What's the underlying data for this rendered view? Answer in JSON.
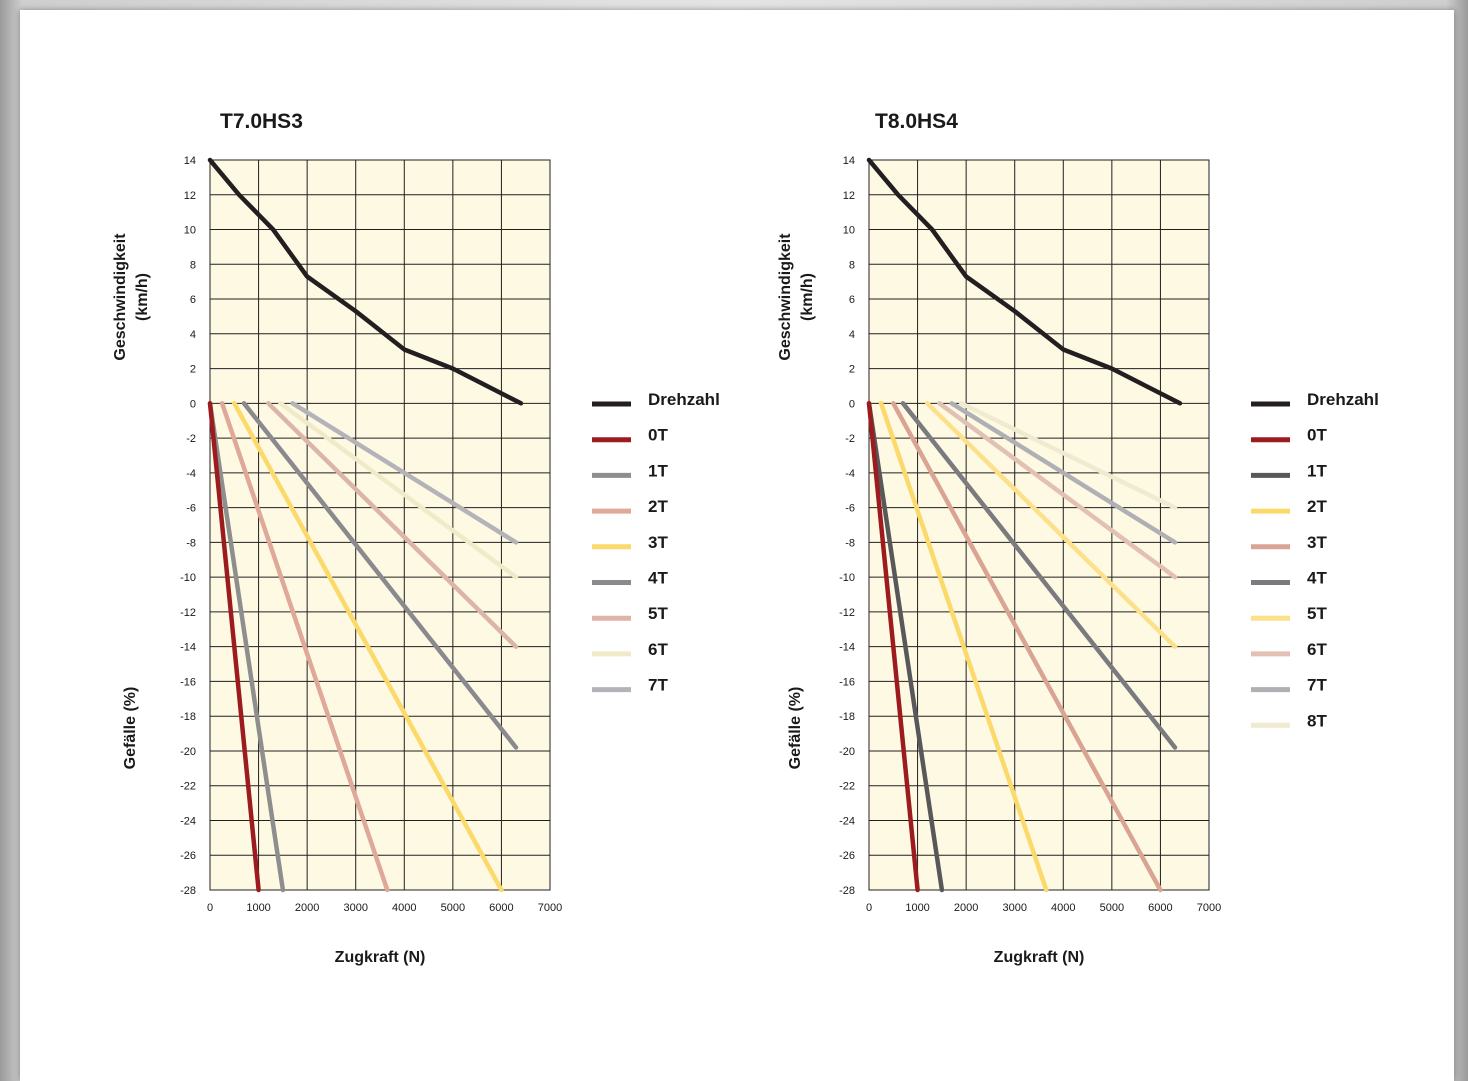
{
  "chart_data": [
    {
      "type": "line",
      "title": "T7.0HS3",
      "xlabel": "Zugkraft (N)",
      "ylabel_top": [
        "Geschwindigkeit",
        "(km/h)"
      ],
      "ylabel_bottom": "Gefälle (%)",
      "xlim": [
        0,
        7000
      ],
      "ylim": [
        -28,
        14
      ],
      "x_ticks": [
        0,
        1000,
        2000,
        3000,
        4000,
        5000,
        6000,
        7000
      ],
      "y_ticks": [
        14,
        12,
        10,
        8,
        6,
        4,
        2,
        0,
        -2,
        -4,
        -6,
        -8,
        -10,
        -12,
        -14,
        -16,
        -18,
        -20,
        -22,
        -24,
        -26,
        -28
      ],
      "grid": true,
      "legend_position": "right",
      "series": [
        {
          "name": "Drehzahl",
          "color": "#231f20",
          "points": [
            [
              0,
              14
            ],
            [
              600,
              12
            ],
            [
              1300,
              10
            ],
            [
              2000,
              7.3
            ],
            [
              3000,
              5.3
            ],
            [
              4000,
              3.1
            ],
            [
              5000,
              2
            ],
            [
              6400,
              0
            ]
          ]
        },
        {
          "name": "0T",
          "color": "#9b1b1f",
          "points": [
            [
              0,
              0
            ],
            [
              1000,
              -28
            ]
          ]
        },
        {
          "name": "1T",
          "color": "#8e8e8e",
          "points": [
            [
              0,
              0
            ],
            [
              1500,
              -28
            ]
          ]
        },
        {
          "name": "2T",
          "color": "#e0a898",
          "points": [
            [
              250,
              0
            ],
            [
              3650,
              -28
            ]
          ]
        },
        {
          "name": "3T",
          "color": "#fbd96b",
          "points": [
            [
              500,
              0
            ],
            [
              6000,
              -28
            ]
          ]
        },
        {
          "name": "4T",
          "color": "#8a8a8e",
          "points": [
            [
              700,
              0
            ],
            [
              6300,
              -19.8
            ]
          ]
        },
        {
          "name": "5T",
          "color": "#ddb4a8",
          "points": [
            [
              1200,
              0
            ],
            [
              6300,
              -14
            ]
          ]
        },
        {
          "name": "6T",
          "color": "#efebc8",
          "points": [
            [
              1450,
              0
            ],
            [
              6300,
              -10
            ]
          ]
        },
        {
          "name": "7T",
          "color": "#b4b4b8",
          "points": [
            [
              1700,
              0
            ],
            [
              6300,
              -8
            ]
          ]
        }
      ]
    },
    {
      "type": "line",
      "title": "T8.0HS4",
      "xlabel": "Zugkraft (N)",
      "ylabel_top": [
        "Geschwindigkeit",
        "(km/h)"
      ],
      "ylabel_bottom": "Gefälle (%)",
      "xlim": [
        0,
        7000
      ],
      "ylim": [
        -28,
        14
      ],
      "x_ticks": [
        0,
        1000,
        2000,
        3000,
        4000,
        5000,
        6000,
        7000
      ],
      "y_ticks": [
        14,
        12,
        10,
        8,
        6,
        4,
        2,
        0,
        -2,
        -4,
        -6,
        -8,
        -10,
        -12,
        -14,
        -16,
        -18,
        -20,
        -22,
        -24,
        -26,
        -28
      ],
      "grid": true,
      "legend_position": "right",
      "series": [
        {
          "name": "Drehzahl",
          "color": "#231f20",
          "points": [
            [
              0,
              14
            ],
            [
              600,
              12
            ],
            [
              1300,
              10
            ],
            [
              2000,
              7.3
            ],
            [
              3000,
              5.3
            ],
            [
              4000,
              3.1
            ],
            [
              5000,
              2
            ],
            [
              6400,
              0
            ]
          ]
        },
        {
          "name": "0T",
          "color": "#9b1b1f",
          "points": [
            [
              0,
              0
            ],
            [
              1000,
              -28
            ]
          ]
        },
        {
          "name": "1T",
          "color": "#58585a",
          "points": [
            [
              0,
              0
            ],
            [
              1500,
              -28
            ]
          ]
        },
        {
          "name": "2T",
          "color": "#fbd96b",
          "points": [
            [
              250,
              0
            ],
            [
              3650,
              -28
            ]
          ]
        },
        {
          "name": "3T",
          "color": "#d9a493",
          "points": [
            [
              500,
              0
            ],
            [
              6000,
              -28
            ]
          ]
        },
        {
          "name": "4T",
          "color": "#7b7b7f",
          "points": [
            [
              700,
              0
            ],
            [
              6300,
              -19.8
            ]
          ]
        },
        {
          "name": "5T",
          "color": "#fde08a",
          "points": [
            [
              1200,
              0
            ],
            [
              6300,
              -14
            ]
          ]
        },
        {
          "name": "6T",
          "color": "#e2c0b4",
          "points": [
            [
              1450,
              0
            ],
            [
              6300,
              -10
            ]
          ]
        },
        {
          "name": "7T",
          "color": "#b0b0b4",
          "points": [
            [
              1700,
              0
            ],
            [
              6300,
              -8
            ]
          ]
        },
        {
          "name": "8T",
          "color": "#f0ead0",
          "points": [
            [
              1900,
              0
            ],
            [
              6300,
              -6
            ]
          ]
        }
      ]
    }
  ],
  "colors": {
    "plot_background": "#fdf9e3",
    "grid": "#231f20"
  }
}
